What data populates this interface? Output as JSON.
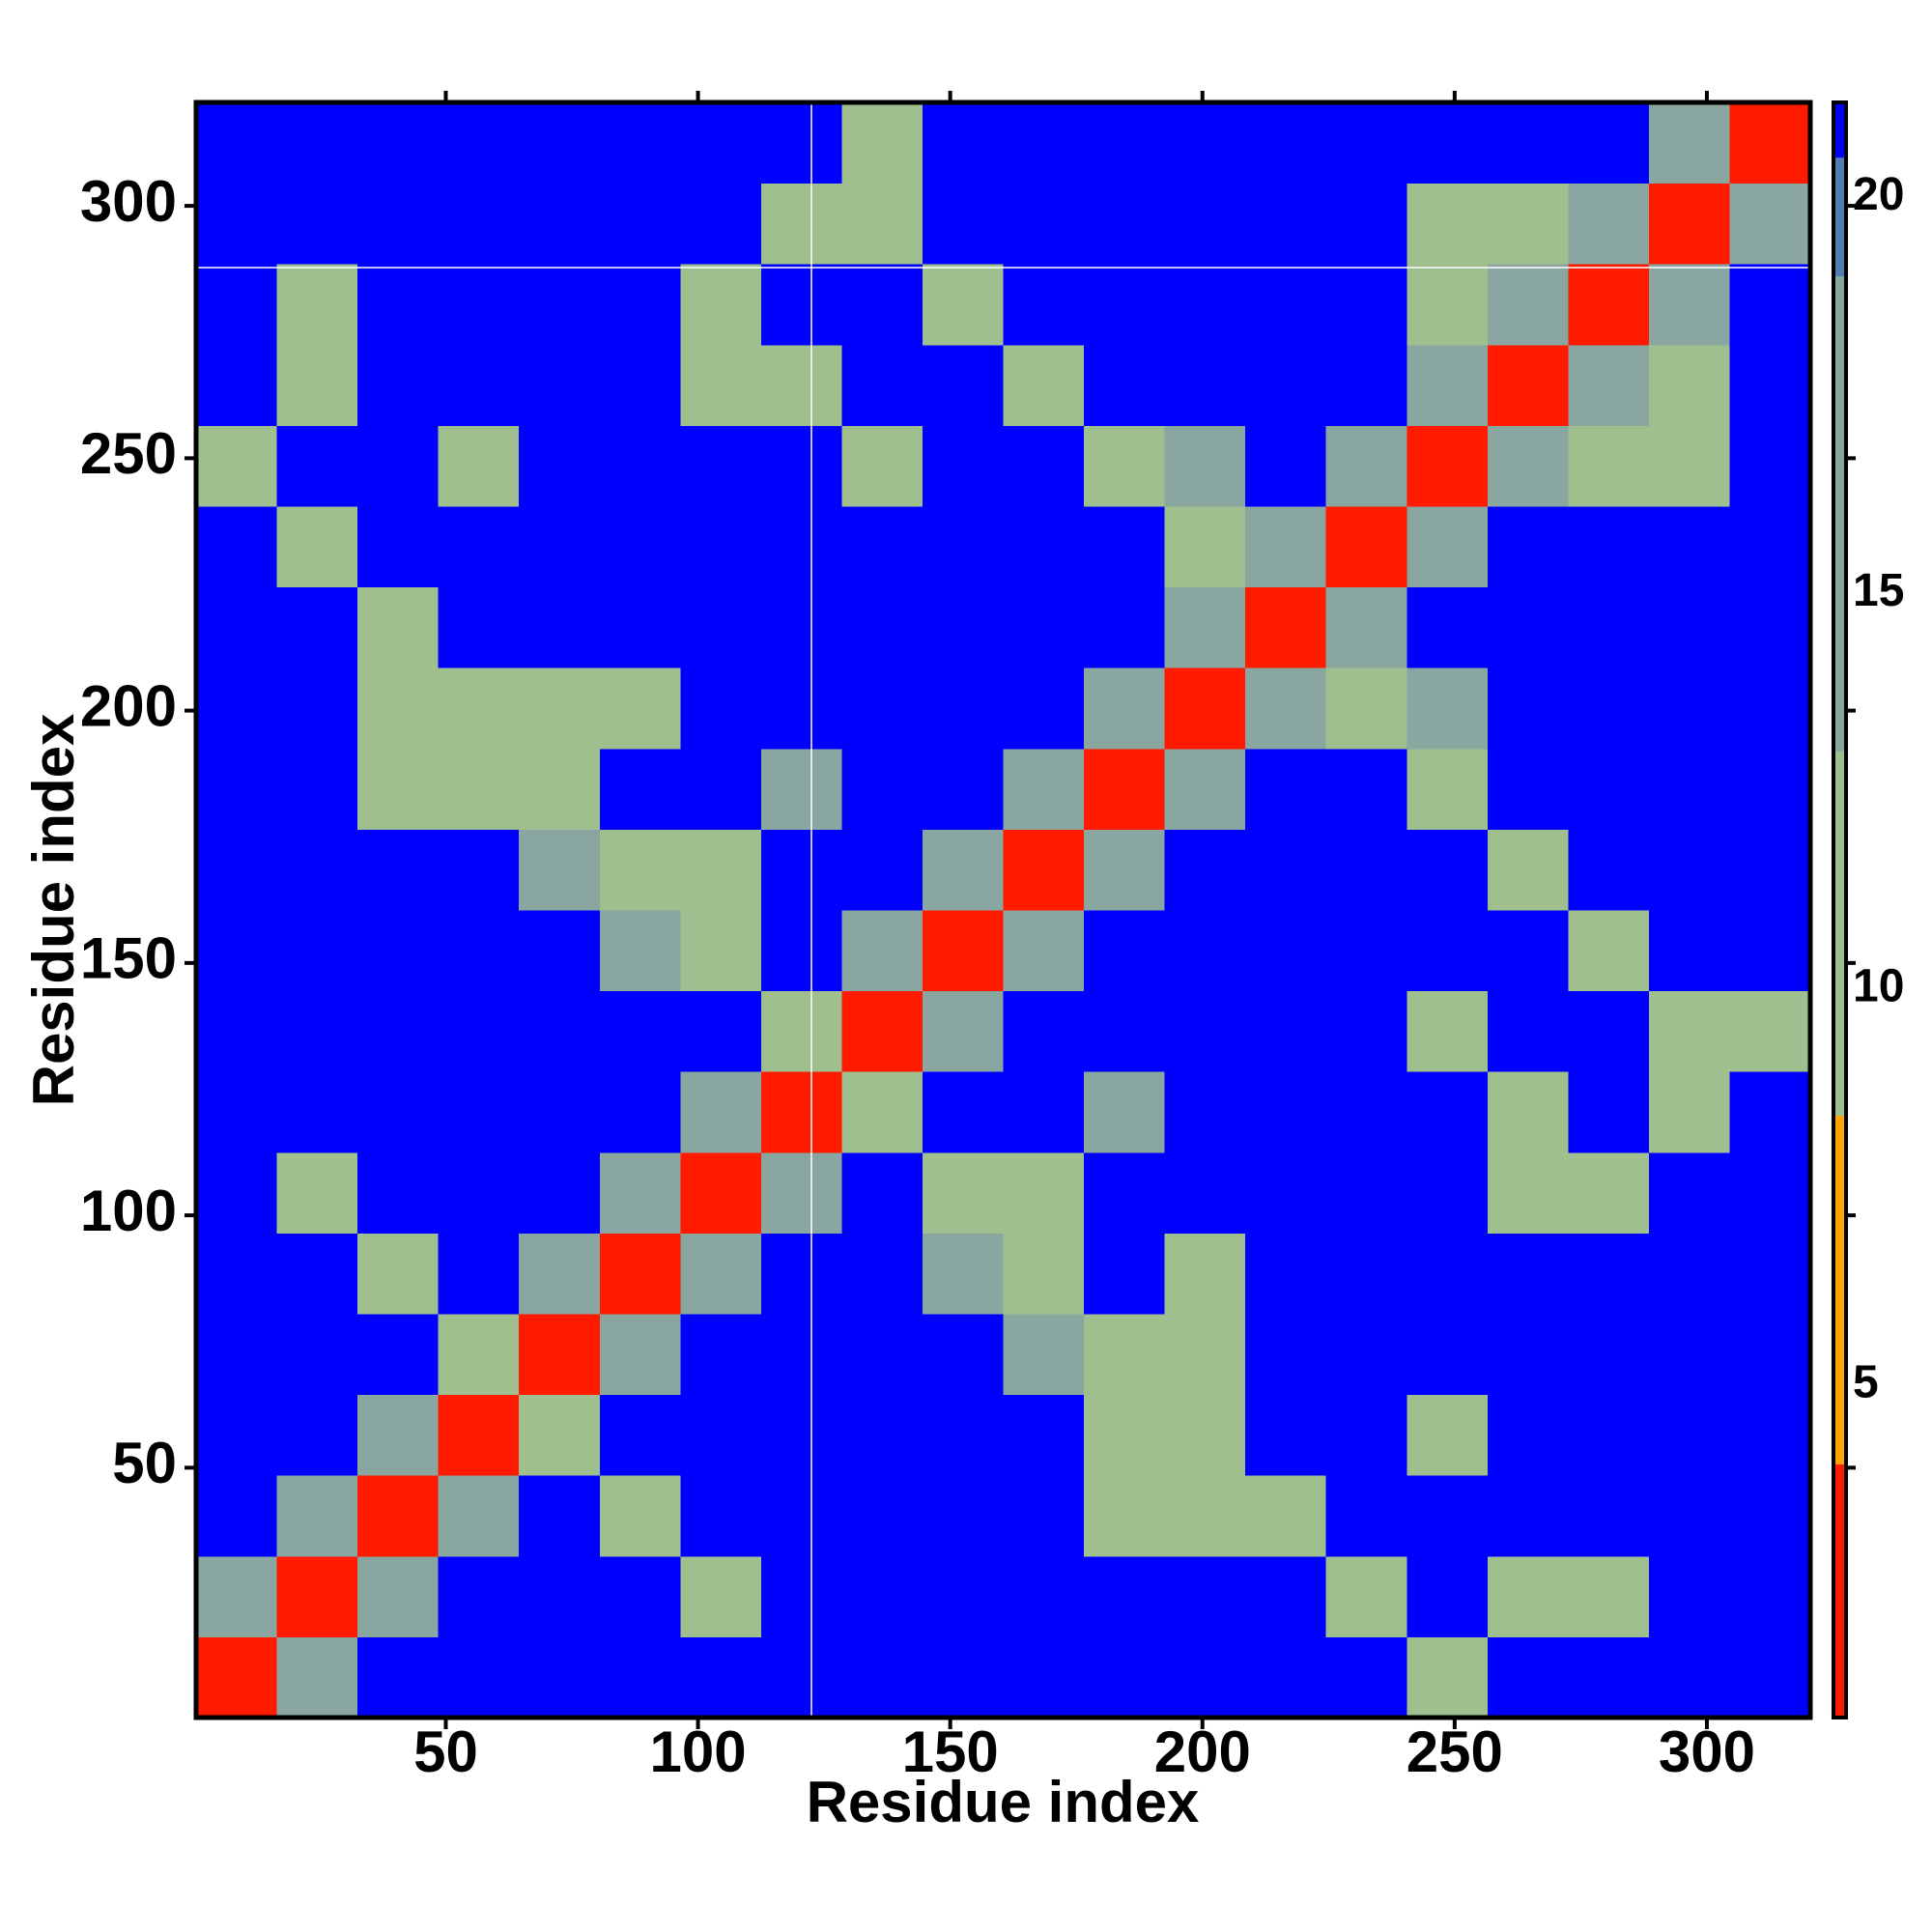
{
  "chart_data": {
    "type": "heatmap",
    "x_label": "Residue index",
    "y_label": "Residue index",
    "xbins": [
      0.5,
      16.5,
      32.5,
      48.5,
      64.5,
      80.5,
      96.5,
      112.5,
      128.5,
      144.5,
      160.5,
      176.5,
      192.5,
      208.5,
      224.5,
      240.5,
      256.5,
      272.5,
      288.5,
      304.5,
      320.5
    ],
    "ybins": [
      0.5,
      16.5,
      32.5,
      48.5,
      64.5,
      80.5,
      96.5,
      112.5,
      128.5,
      144.5,
      160.5,
      176.5,
      192.5,
      208.5,
      224.5,
      240.5,
      256.5,
      272.5,
      288.5,
      304.5,
      320.5
    ],
    "values": [
      [
        3,
        17,
        21,
        21,
        21,
        21,
        21,
        21,
        21,
        21,
        21,
        21,
        21,
        21,
        21,
        10,
        21,
        21,
        21,
        21
      ],
      [
        17,
        3,
        17,
        21,
        21,
        21,
        10,
        21,
        21,
        21,
        21,
        21,
        21,
        21,
        10,
        21,
        10,
        10,
        21,
        21
      ],
      [
        21,
        17,
        3,
        17,
        21,
        10,
        21,
        21,
        21,
        21,
        21,
        10,
        10,
        10,
        21,
        21,
        21,
        21,
        21,
        21
      ],
      [
        21,
        21,
        17,
        3,
        12,
        21,
        21,
        21,
        21,
        21,
        21,
        10,
        10,
        21,
        21,
        10,
        21,
        21,
        21,
        21
      ],
      [
        21,
        21,
        21,
        12,
        3,
        17,
        21,
        21,
        21,
        21,
        14,
        10,
        10,
        21,
        21,
        21,
        21,
        21,
        21,
        21
      ],
      [
        21,
        21,
        10,
        21,
        17,
        3,
        17,
        21,
        21,
        14,
        10,
        21,
        10,
        21,
        21,
        21,
        21,
        21,
        21,
        21
      ],
      [
        21,
        10,
        21,
        21,
        21,
        17,
        3,
        17,
        21,
        10,
        10,
        21,
        21,
        21,
        21,
        21,
        10,
        10,
        21,
        21
      ],
      [
        21,
        21,
        21,
        21,
        21,
        21,
        17,
        3,
        12,
        21,
        21,
        14,
        21,
        21,
        21,
        21,
        10,
        21,
        10,
        21
      ],
      [
        21,
        21,
        21,
        21,
        21,
        21,
        21,
        12,
        3,
        17,
        21,
        21,
        21,
        21,
        21,
        10,
        21,
        21,
        10,
        10
      ],
      [
        21,
        21,
        21,
        21,
        21,
        14,
        10,
        21,
        17,
        3,
        17,
        21,
        21,
        21,
        21,
        21,
        21,
        10,
        21,
        21
      ],
      [
        21,
        21,
        21,
        21,
        14,
        10,
        10,
        21,
        21,
        17,
        3,
        17,
        21,
        21,
        21,
        21,
        10,
        21,
        21,
        21
      ],
      [
        21,
        21,
        10,
        10,
        10,
        21,
        21,
        14,
        21,
        21,
        17,
        3,
        17,
        21,
        21,
        10,
        21,
        21,
        21,
        21
      ],
      [
        21,
        21,
        10,
        10,
        10,
        10,
        21,
        21,
        21,
        21,
        21,
        17,
        3,
        17,
        10,
        14,
        21,
        21,
        21,
        21
      ],
      [
        21,
        21,
        10,
        21,
        21,
        21,
        21,
        21,
        21,
        21,
        21,
        21,
        17,
        3,
        17,
        21,
        21,
        21,
        21,
        21
      ],
      [
        21,
        10,
        21,
        21,
        21,
        21,
        21,
        21,
        21,
        21,
        21,
        21,
        10,
        17,
        3,
        17,
        21,
        21,
        21,
        21
      ],
      [
        10,
        21,
        21,
        10,
        21,
        21,
        21,
        21,
        10,
        21,
        21,
        10,
        14,
        21,
        17,
        3,
        17,
        10,
        10,
        21
      ],
      [
        21,
        10,
        21,
        21,
        21,
        21,
        10,
        10,
        21,
        21,
        10,
        21,
        21,
        21,
        21,
        17,
        3,
        17,
        12,
        21
      ],
      [
        21,
        10,
        21,
        21,
        21,
        21,
        10,
        21,
        21,
        10,
        21,
        21,
        21,
        21,
        21,
        10,
        17,
        3,
        17,
        21
      ],
      [
        21,
        21,
        21,
        21,
        21,
        21,
        21,
        10,
        10,
        21,
        21,
        21,
        21,
        21,
        21,
        10,
        12,
        17,
        3,
        17
      ],
      [
        21,
        21,
        21,
        21,
        21,
        21,
        21,
        21,
        10,
        21,
        21,
        21,
        21,
        21,
        21,
        21,
        21,
        21,
        17,
        3
      ]
    ],
    "xlim": [
      0.5,
      320.5
    ],
    "ylim": [
      0.5,
      320.5
    ],
    "xticks": [
      50,
      100,
      150,
      200,
      250,
      300
    ],
    "yticks": [
      50,
      100,
      150,
      200,
      250,
      300
    ],
    "clim": [
      0.8,
      21.2
    ],
    "cticks": [
      5,
      10,
      15,
      20
    ],
    "color_levels": [
      {
        "upto": 4,
        "color": "#ff1a00"
      },
      {
        "upto": 8.4,
        "color": "#ffa500"
      },
      {
        "upto": 13,
        "color": "#9fbf8f"
      },
      {
        "upto": 19,
        "color": "#8aa6a0"
      },
      {
        "upto": 20.5,
        "color": "#4f7fb0"
      },
      {
        "upto": 21.2,
        "color": "#0000ff"
      }
    ]
  }
}
